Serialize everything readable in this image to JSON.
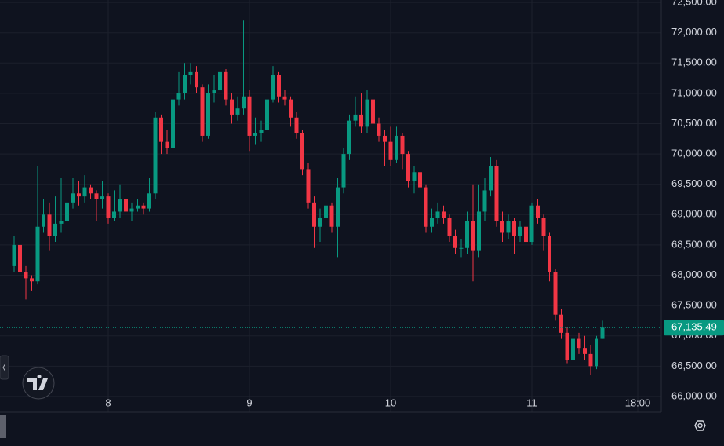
{
  "chart_data": {
    "type": "candlestick",
    "x": [
      -16,
      -15,
      -14,
      -13,
      -12,
      -11,
      -10,
      -9,
      -8,
      -7,
      -6,
      -5,
      -4,
      -3,
      -2,
      -1,
      0,
      1,
      2,
      3,
      4,
      5,
      6,
      7,
      8,
      9,
      10,
      11,
      12,
      13,
      14,
      15,
      16,
      17,
      18,
      19,
      20,
      21,
      22,
      23,
      24,
      25,
      26,
      27,
      28,
      29,
      30,
      31,
      32,
      33,
      34,
      35,
      36,
      37,
      38,
      39,
      40,
      41,
      42,
      43,
      44,
      45,
      46,
      47,
      48,
      49,
      50,
      51,
      52,
      53,
      54,
      55,
      56,
      57,
      58,
      59,
      60,
      61,
      62,
      63,
      64,
      65,
      66,
      67,
      68,
      69,
      70,
      71,
      72,
      73,
      74,
      75,
      76,
      77,
      78,
      79,
      80,
      81,
      82,
      83,
      84
    ],
    "open": [
      68150,
      68500,
      68050,
      67950,
      67900,
      68800,
      69000,
      68650,
      68850,
      68900,
      69200,
      69350,
      69300,
      69450,
      69350,
      69250,
      69300,
      68950,
      69050,
      69250,
      69050,
      69100,
      69150,
      69100,
      69350,
      70600,
      70200,
      70100,
      70900,
      71000,
      71300,
      71350,
      71100,
      70300,
      71000,
      71050,
      71350,
      70900,
      70650,
      70750,
      70950,
      70300,
      70350,
      70400,
      70900,
      71300,
      70950,
      70900,
      70600,
      70350,
      69750,
      69200,
      68800,
      68950,
      69150,
      68800,
      69450,
      70000,
      70550,
      70650,
      70450,
      70900,
      70500,
      70300,
      70200,
      69900,
      70300,
      70000,
      69550,
      69700,
      69450,
      68800,
      68950,
      69050,
      68950,
      68650,
      68450,
      68450,
      68900,
      68400,
      69050,
      69400,
      69800,
      68900,
      68700,
      68900,
      68650,
      68800,
      68550,
      69150,
      68950,
      68650,
      68050,
      67350,
      67050,
      66600,
      66950,
      66800,
      66700,
      66500,
      66950
    ],
    "high": [
      68650,
      68600,
      68150,
      68000,
      69800,
      69250,
      69200,
      69300,
      69600,
      69350,
      69600,
      69550,
      69650,
      69500,
      69400,
      69550,
      69350,
      69400,
      69500,
      69300,
      69200,
      69250,
      69200,
      69600,
      70700,
      70650,
      70400,
      71000,
      71350,
      71500,
      71500,
      71450,
      71150,
      71150,
      71300,
      71500,
      71400,
      71000,
      70950,
      72200,
      71050,
      70600,
      70550,
      71000,
      71450,
      71350,
      71050,
      70950,
      70700,
      70400,
      69850,
      69300,
      69100,
      69250,
      69200,
      69600,
      70100,
      70650,
      70950,
      71000,
      71050,
      70950,
      70600,
      70400,
      70450,
      70450,
      70350,
      70050,
      69800,
      69750,
      69500,
      69100,
      69200,
      69150,
      69000,
      68750,
      68600,
      69050,
      69500,
      69500,
      69600,
      69950,
      69900,
      69050,
      69000,
      68950,
      68900,
      68850,
      69200,
      69250,
      69000,
      68700,
      68100,
      67450,
      67150,
      67100,
      67050,
      67000,
      66850,
      67000,
      67250
    ],
    "low": [
      68050,
      67800,
      67600,
      67750,
      67850,
      68700,
      68400,
      68550,
      68700,
      68800,
      69100,
      69150,
      69200,
      69250,
      68900,
      69100,
      68850,
      68900,
      68950,
      68950,
      68900,
      69050,
      69000,
      69050,
      69250,
      70000,
      70000,
      70050,
      70800,
      70900,
      71150,
      71000,
      70200,
      70250,
      70850,
      70950,
      70800,
      70500,
      70550,
      70650,
      70050,
      70150,
      70200,
      70350,
      70850,
      70850,
      70800,
      70450,
      70250,
      69650,
      69100,
      68450,
      68550,
      68850,
      68700,
      68300,
      69350,
      69900,
      70450,
      70350,
      70350,
      70400,
      70200,
      69800,
      69800,
      69850,
      69750,
      69450,
      69350,
      69100,
      68700,
      68700,
      68850,
      68850,
      68550,
      68350,
      68300,
      68350,
      67900,
      68300,
      68900,
      69300,
      68800,
      68550,
      68600,
      68350,
      68550,
      68450,
      68500,
      68850,
      68400,
      67900,
      67250,
      66950,
      66550,
      66550,
      66700,
      66600,
      66350,
      66450,
      66950
    ],
    "close": [
      68500,
      68050,
      67950,
      67900,
      68800,
      69000,
      68650,
      68850,
      68900,
      69200,
      69350,
      69300,
      69450,
      69350,
      69250,
      69300,
      68950,
      69050,
      69250,
      69050,
      69100,
      69150,
      69100,
      69350,
      70600,
      70200,
      70100,
      70900,
      71000,
      71300,
      71350,
      71100,
      70300,
      71000,
      71050,
      71350,
      70900,
      70650,
      70750,
      70950,
      70300,
      70350,
      70400,
      70900,
      71300,
      70950,
      70900,
      70600,
      70350,
      69750,
      69200,
      68800,
      68950,
      69150,
      68800,
      69450,
      70000,
      70550,
      70650,
      70450,
      70900,
      70500,
      70300,
      70200,
      69900,
      70300,
      70000,
      69550,
      69700,
      69450,
      68800,
      68950,
      69050,
      68950,
      68650,
      68450,
      68450,
      68900,
      68400,
      69050,
      69400,
      69800,
      68900,
      68700,
      68900,
      68650,
      68800,
      68550,
      69150,
      68950,
      68650,
      68050,
      67350,
      67050,
      66600,
      66950,
      66800,
      66700,
      66500,
      66950,
      67135.49
    ],
    "up_color": "#089981",
    "down_color": "#f23645",
    "xlim": [
      -18.4,
      94
    ],
    "xticks": [
      {
        "value": 0,
        "label": "8"
      },
      {
        "value": 24,
        "label": "9"
      },
      {
        "value": 48,
        "label": "10"
      },
      {
        "value": 72,
        "label": "11"
      },
      {
        "value": 90,
        "label": "18:00"
      }
    ],
    "ylim": [
      65740,
      72540
    ],
    "yticks": [
      {
        "value": 66000,
        "label": "66,000.00"
      },
      {
        "value": 66500,
        "label": "66,500.00"
      },
      {
        "value": 67000,
        "label": "67,000.00"
      },
      {
        "value": 67500,
        "label": "67,500.00"
      },
      {
        "value": 68000,
        "label": "68,000.00"
      },
      {
        "value": 68500,
        "label": "68,500.00"
      },
      {
        "value": 69000,
        "label": "69,000.00"
      },
      {
        "value": 69500,
        "label": "69,500.00"
      },
      {
        "value": 70000,
        "label": "70,000.00"
      },
      {
        "value": 70500,
        "label": "70,500.00"
      },
      {
        "value": 71000,
        "label": "71,000.00"
      },
      {
        "value": 71500,
        "label": "71,500.00"
      },
      {
        "value": 72000,
        "label": "72,000.00"
      },
      {
        "value": 72500,
        "label": "72,500.00"
      }
    ],
    "grid": true,
    "last_price": {
      "value": 67135.49,
      "label": "67,135.49"
    }
  }
}
